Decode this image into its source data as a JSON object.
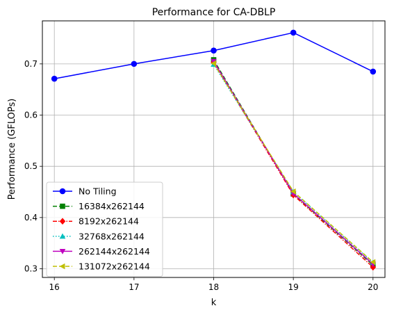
{
  "chart_data": {
    "type": "line",
    "title": "Performance for CA-DBLP",
    "xlabel": "k",
    "ylabel": "Performance (GFLOPs)",
    "xlim": [
      15.85,
      20.15
    ],
    "ylim": [
      0.283,
      0.784
    ],
    "x_ticks": [
      16,
      17,
      18,
      19,
      20
    ],
    "y_ticks": [
      0.3,
      0.4,
      0.5,
      0.6,
      0.7
    ],
    "x_tick_labels": [
      "16",
      "17",
      "18",
      "19",
      "20"
    ],
    "y_tick_labels": [
      "0.3",
      "0.4",
      "0.5",
      "0.6",
      "0.7"
    ],
    "grid": true,
    "legend_position": "lower-left",
    "series": [
      {
        "name": "No Tiling",
        "x": [
          16,
          17,
          18,
          19,
          20
        ],
        "values": [
          0.671,
          0.7,
          0.726,
          0.761,
          0.685
        ],
        "color": "#0000ff",
        "dash": "solid",
        "marker": "circle"
      },
      {
        "name": "16384x262144",
        "x": [
          18,
          19,
          20
        ],
        "values": [
          0.708,
          0.446,
          0.307
        ],
        "color": "#008000",
        "dash": "dashed",
        "marker": "square"
      },
      {
        "name": "8192x262144",
        "x": [
          18,
          19,
          20
        ],
        "values": [
          0.703,
          0.444,
          0.303
        ],
        "color": "#ff0000",
        "dash": "dashdot",
        "marker": "diamond"
      },
      {
        "name": "32768x262144",
        "x": [
          18,
          19,
          20
        ],
        "values": [
          0.699,
          0.45,
          0.312
        ],
        "color": "#00bfbf",
        "dash": "dotted",
        "marker": "triangle-up"
      },
      {
        "name": "262144x262144",
        "x": [
          18,
          19,
          20
        ],
        "values": [
          0.705,
          0.447,
          0.309
        ],
        "color": "#bf00bf",
        "dash": "solid",
        "marker": "triangle-down"
      },
      {
        "name": "131072x262144",
        "x": [
          18,
          19,
          20
        ],
        "values": [
          0.701,
          0.451,
          0.313
        ],
        "color": "#bfbf00",
        "dash": "dashed",
        "marker": "triangle-left"
      }
    ]
  }
}
